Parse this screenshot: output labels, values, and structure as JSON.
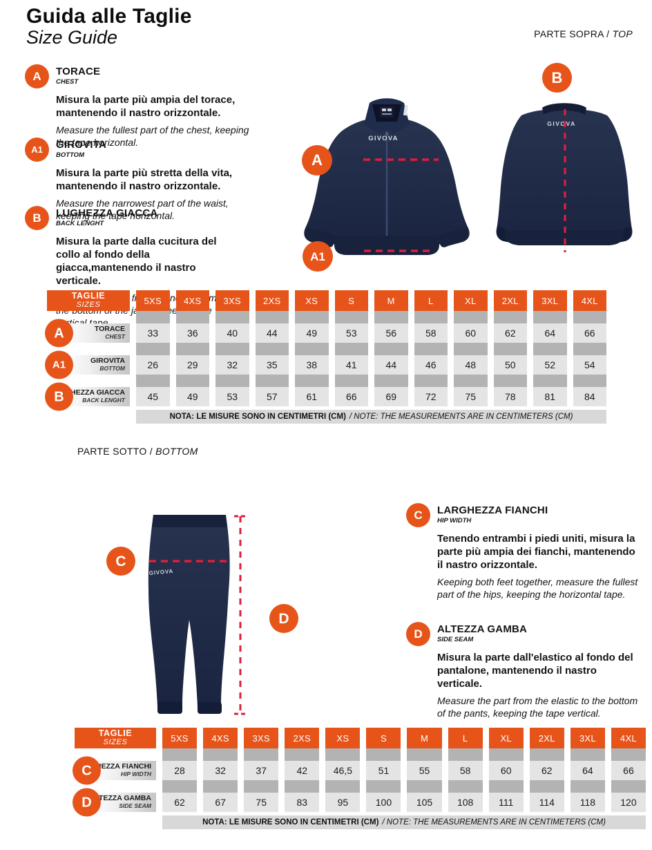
{
  "header": {
    "title": "Guida alle Taglie",
    "subtitle": "Size Guide"
  },
  "brand": {
    "logo": "GIVOVA"
  },
  "section_labels": {
    "top": {
      "it": "PARTE SOPRA /",
      "en": "TOP"
    },
    "bottom": {
      "it": "PARTE SOTTO /",
      "en": "BOTTOM"
    }
  },
  "measures": [
    {
      "letter": "A",
      "name_it": "TORACE",
      "name_en": "CHEST",
      "desc_it": "Misura la parte più ampia del torace, mantenendo il nastro orizzontale.",
      "desc_en": "Measure the fullest part of the chest, keeping the tape horizontal."
    },
    {
      "letter": "A1",
      "name_it": "GIROVITA",
      "name_en": "BOTTOM",
      "desc_it": "Misura la parte più stretta della vita, mantenendo il nastro orizzontale.",
      "desc_en": "Measure the narrowest part of the waist, keeping the tape horizontal."
    },
    {
      "letter": "B",
      "name_it": "LUGHEZZA GIACCA",
      "name_en": "BACK LENGHT",
      "desc_it": "Misura la parte dalla cucitura del collo al fondo della giacca,mantenendo il nastro verticale.",
      "desc_en": "Measure the part from the neck seam at the bottom of the jacket, keeping the vertical tape."
    },
    {
      "letter": "C",
      "name_it": "LARGHEZZA FIANCHI",
      "name_en": "HIP WIDTH",
      "desc_it": "Tenendo entrambi i piedi uniti, misura la parte più ampia dei fianchi, mantenendo il nastro orizzontale.",
      "desc_en": "Keeping both feet together, measure the fullest part of the hips, keeping the horizontal tape."
    },
    {
      "letter": "D",
      "name_it": "ALTEZZA GAMBA",
      "name_en": "SIDE SEAM",
      "desc_it": "Misura la parte dall'elastico al fondo del pantalone, mantenendo il nastro verticale.",
      "desc_en": "Measure the part from the elastic to the bottom of the pants, keeping the tape vertical."
    }
  ],
  "sizes": [
    "5XS",
    "4XS",
    "3XS",
    "2XS",
    "XS",
    "S",
    "M",
    "L",
    "XL",
    "2XL",
    "3XL",
    "4XL"
  ],
  "table_header": {
    "it": "TAGLIE",
    "en": "SIZES"
  },
  "note": {
    "it": "NOTA: LE MISURE SONO IN CENTIMETRI (CM)",
    "en": "/ NOTE: THE MEASUREMENTS ARE IN CENTIMETERS (CM)"
  },
  "table_top": {
    "rows": [
      {
        "letter": "A",
        "label_it": "TORACE",
        "label_en": "CHEST",
        "values": [
          "33",
          "36",
          "40",
          "44",
          "49",
          "53",
          "56",
          "58",
          "60",
          "62",
          "64",
          "66"
        ]
      },
      {
        "letter": "A1",
        "label_it": "GIROVITA",
        "label_en": "BOTTOM",
        "values": [
          "26",
          "29",
          "32",
          "35",
          "38",
          "41",
          "44",
          "46",
          "48",
          "50",
          "52",
          "54"
        ]
      },
      {
        "letter": "B",
        "label_it": "LUNGHEZZA GIACCA",
        "label_en": "BACK LENGHT",
        "values": [
          "45",
          "49",
          "53",
          "57",
          "61",
          "66",
          "69",
          "72",
          "75",
          "78",
          "81",
          "84"
        ]
      }
    ]
  },
  "table_bottom": {
    "rows": [
      {
        "letter": "C",
        "label_it": "LARGHEZZA FIANCHI",
        "label_en": "HIP WIDTH",
        "values": [
          "28",
          "32",
          "37",
          "42",
          "46,5",
          "51",
          "55",
          "58",
          "60",
          "62",
          "64",
          "66"
        ]
      },
      {
        "letter": "D",
        "label_it": "ALTEZZA GAMBA",
        "label_en": "SIDE SEAM",
        "values": [
          "62",
          "67",
          "75",
          "83",
          "95",
          "100",
          "105",
          "108",
          "111",
          "114",
          "118",
          "120"
        ]
      }
    ]
  },
  "colors": {
    "accent_orange": "#e6541a",
    "garment_navy": "#1e2a47",
    "dash_red": "#dc1f3c",
    "spacer_gray": "#b3b3b3",
    "cell_gray": "#e4e4e4",
    "note_gray": "#d8d8d8"
  }
}
